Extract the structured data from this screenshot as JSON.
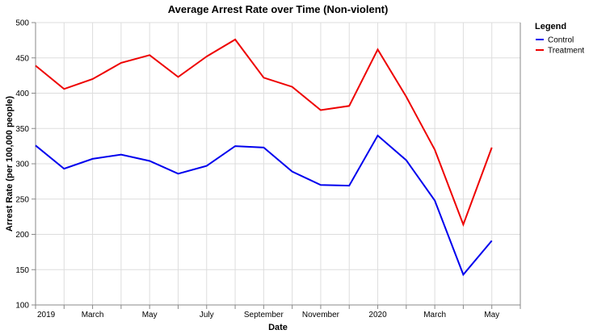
{
  "chart_data": {
    "type": "line",
    "title": "Average Arrest Rate over Time (Non-violent)",
    "xlabel": "Date",
    "ylabel": "Arrest Rate (per 100,000 people)",
    "ylim": [
      100,
      500
    ],
    "yticks": [
      100,
      150,
      200,
      250,
      300,
      350,
      400,
      450,
      500
    ],
    "x": [
      "2019-01",
      "2019-02",
      "2019-03",
      "2019-04",
      "2019-05",
      "2019-06",
      "2019-07",
      "2019-08",
      "2019-09",
      "2019-10",
      "2019-11",
      "2019-12",
      "2020-01",
      "2020-02",
      "2020-03",
      "2020-04",
      "2020-05"
    ],
    "xlim": [
      "2019-01",
      "2020-06"
    ],
    "xtick_labels": [
      {
        "x": "2019-01",
        "label": "2019"
      },
      {
        "x": "2019-03",
        "label": "March"
      },
      {
        "x": "2019-05",
        "label": "May"
      },
      {
        "x": "2019-07",
        "label": "July"
      },
      {
        "x": "2019-09",
        "label": "September"
      },
      {
        "x": "2019-11",
        "label": "November"
      },
      {
        "x": "2020-01",
        "label": "2020"
      },
      {
        "x": "2020-03",
        "label": "March"
      },
      {
        "x": "2020-05",
        "label": "May"
      }
    ],
    "grid": true,
    "legend": {
      "title": "Legend",
      "position": "right"
    },
    "series": [
      {
        "name": "Control",
        "color": "#0000ee",
        "values": [
          326,
          293,
          307,
          313,
          304,
          286,
          297,
          325,
          323,
          289,
          270,
          269,
          340,
          305,
          248,
          143,
          191
        ]
      },
      {
        "name": "Treatment",
        "color": "#ee0000",
        "values": [
          439,
          406,
          420,
          443,
          454,
          423,
          452,
          476,
          422,
          409,
          376,
          382,
          462,
          395,
          320,
          214,
          323
        ]
      }
    ]
  }
}
